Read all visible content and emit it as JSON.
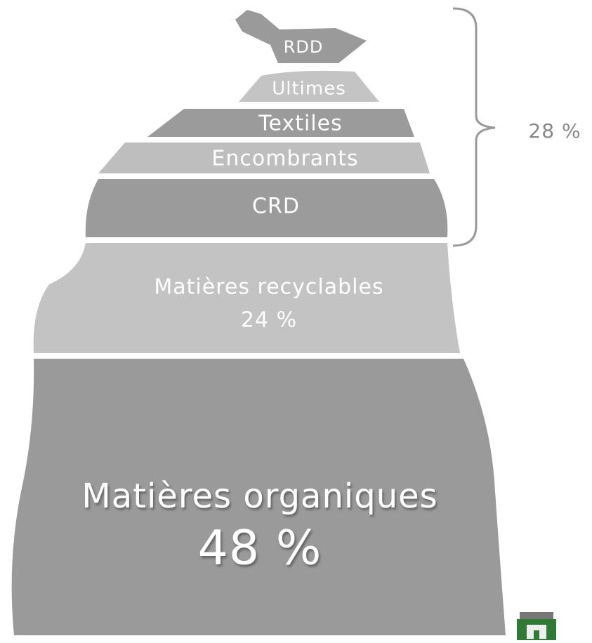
{
  "segments": [
    {
      "label": "RDD"
    },
    {
      "label": "Ultimes"
    },
    {
      "label": "Textiles"
    },
    {
      "label": "Encombrants"
    },
    {
      "label": "CRD"
    },
    {
      "label": "Matières recyclables",
      "value": "24 %"
    },
    {
      "label": "Matières organiques",
      "value": "48 %"
    }
  ],
  "bracket": {
    "label": "28 %"
  }
}
